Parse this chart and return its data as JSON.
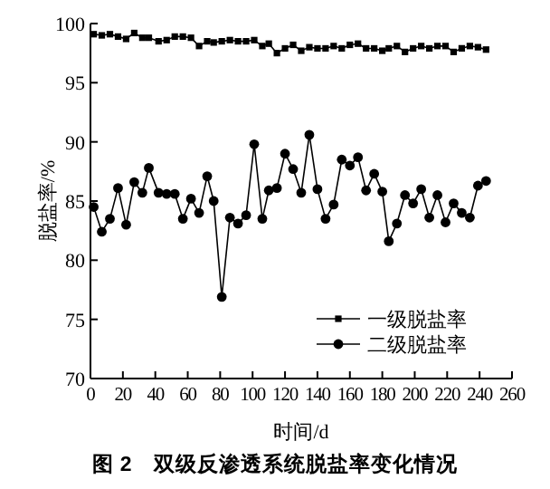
{
  "chart_data": {
    "type": "line",
    "title": "图 2　双级反渗透系统脱盐率变化情况",
    "xlabel": "时间/d",
    "ylabel": "脱盐率/%",
    "x": [
      2,
      7,
      12,
      17,
      22,
      27,
      32,
      36,
      42,
      47,
      52,
      57,
      62,
      67,
      72,
      76,
      81,
      86,
      91,
      96,
      101,
      106,
      110,
      115,
      120,
      125,
      130,
      135,
      140,
      145,
      150,
      155,
      160,
      165,
      170,
      175,
      180,
      184,
      189,
      194,
      199,
      204,
      209,
      214,
      219,
      224,
      229,
      234,
      239,
      244
    ],
    "series": [
      {
        "name": "一级脱盐率",
        "color": "#000000",
        "marker": "square",
        "values": [
          99.1,
          99.0,
          99.1,
          98.9,
          98.7,
          99.2,
          98.8,
          98.8,
          98.5,
          98.6,
          98.9,
          98.9,
          98.8,
          98.1,
          98.5,
          98.4,
          98.5,
          98.6,
          98.5,
          98.5,
          98.6,
          98.1,
          98.3,
          97.5,
          97.9,
          98.2,
          97.7,
          98.0,
          97.9,
          97.9,
          98.1,
          97.9,
          98.2,
          98.3,
          97.9,
          97.9,
          97.7,
          97.9,
          98.1,
          97.6,
          97.9,
          98.1,
          97.9,
          98.1,
          98.1,
          97.6,
          97.9,
          98.1,
          98.0,
          97.8
        ]
      },
      {
        "name": "二级脱盐率",
        "color": "#000000",
        "marker": "circle",
        "values": [
          84.5,
          82.4,
          83.5,
          86.1,
          83.0,
          86.6,
          85.7,
          87.8,
          85.7,
          85.6,
          85.6,
          83.5,
          85.2,
          84.0,
          87.1,
          85.0,
          76.9,
          83.6,
          83.1,
          83.8,
          89.8,
          83.5,
          85.9,
          86.1,
          89.0,
          87.7,
          85.7,
          90.6,
          86.0,
          83.5,
          84.7,
          88.5,
          88.0,
          88.7,
          85.9,
          87.3,
          85.8,
          81.6,
          83.1,
          85.5,
          84.8,
          86.0,
          83.6,
          85.5,
          83.2,
          84.8,
          84.0,
          83.6,
          86.3,
          86.7
        ]
      }
    ],
    "xlim": [
      0,
      260
    ],
    "xticks": [
      0,
      20,
      40,
      60,
      80,
      100,
      120,
      140,
      160,
      180,
      200,
      220,
      240,
      260
    ],
    "ylim": [
      70,
      100
    ],
    "yticks": [
      70,
      75,
      80,
      85,
      90,
      95,
      100
    ],
    "grid": false,
    "legend": "bottom right",
    "line_style": "solid"
  }
}
